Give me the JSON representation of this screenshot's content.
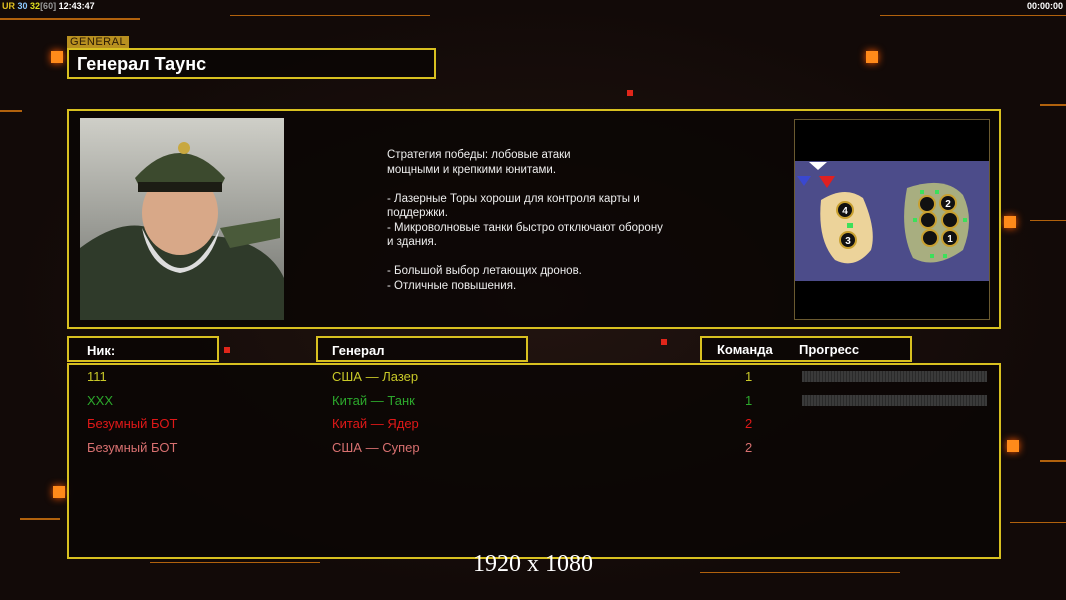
{
  "hud": {
    "ur": "UR",
    "fps": "30",
    "fps2": "32",
    "fps_cap": "[60]",
    "clock": "12:43:47",
    "timer": "00:00:00"
  },
  "general": {
    "tag": "GENERAL",
    "name": "Генерал Таунс"
  },
  "description": "Стратегия победы: лобовые атаки\nмощными и крепкими юнитами.\n\n- Лазерные Торы хороши для контроля карты и\n поддержки.\n- Микроволновые танки быстро отключают оборону\n и здания.\n\n- Большой выбор летающих дронов.\n- Отличные повышения.",
  "map": {
    "start_positions": [
      "1",
      "2",
      "3",
      "4"
    ]
  },
  "table": {
    "headers": {
      "nick": "Ник:",
      "general": "Генерал",
      "team": "Команда",
      "progress": "Прогресс"
    },
    "rows": [
      {
        "nick": "111",
        "general": "США — Лазер",
        "team": "1",
        "color": "#c8c828",
        "progress": 0,
        "show_progress": true
      },
      {
        "nick": "XXX",
        "general": "Китай — Танк",
        "team": "1",
        "color": "#2ca82c",
        "progress": 0,
        "show_progress": true
      },
      {
        "nick": "Безумный БОТ",
        "general": "Китай — Ядер",
        "team": "2",
        "color": "#e01818",
        "show_progress": false
      },
      {
        "nick": "Безумный БОТ",
        "general": "США — Супер",
        "team": "2",
        "color": "#d87070",
        "show_progress": false
      }
    ]
  },
  "resolution": "1920 x 1080"
}
